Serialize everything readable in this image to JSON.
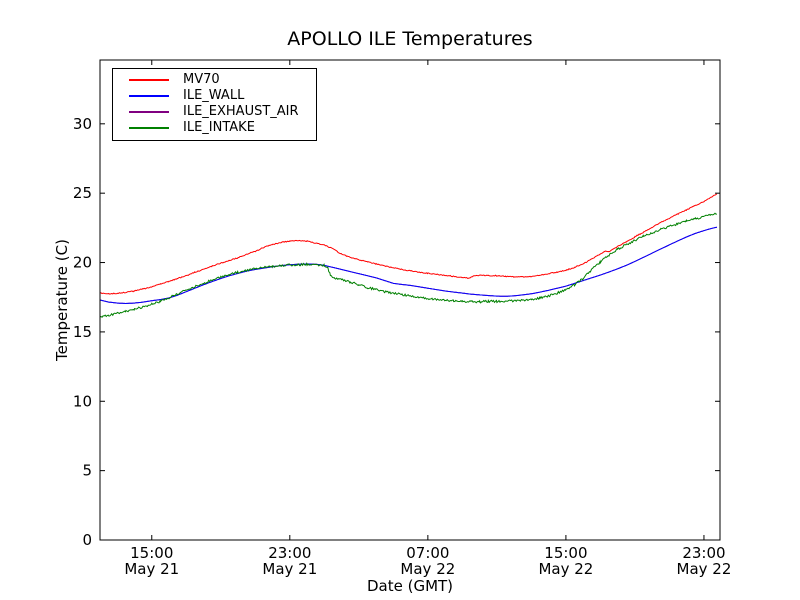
{
  "figure": {
    "background": "#ffffff",
    "axes_color": "#000000"
  },
  "chart_data": {
    "type": "line",
    "title": "APOLLO ILE Temperatures",
    "xlabel": "Date (GMT)",
    "ylabel": "Temperature (C)",
    "grid": false,
    "legend_position": "upper left",
    "x_unit": "hours since May 21 00:00 GMT",
    "xlim": [
      12,
      47.93
    ],
    "ylim": [
      0,
      34.6
    ],
    "yticks": [
      0,
      5,
      10,
      15,
      20,
      25,
      30
    ],
    "xticks": [
      {
        "hour": 15,
        "time": "15:00",
        "date": "May 21"
      },
      {
        "hour": 23,
        "time": "23:00",
        "date": "May 21"
      },
      {
        "hour": 31,
        "time": "07:00",
        "date": "May 22"
      },
      {
        "hour": 39,
        "time": "15:00",
        "date": "May 22"
      },
      {
        "hour": 47,
        "time": "23:00",
        "date": "May 22"
      }
    ],
    "z_order": [
      "MV70",
      "ILE_EXHAUST_AIR",
      "ILE_WALL",
      "ILE_INTAKE"
    ],
    "series": [
      {
        "name": "MV70",
        "color": "#ff0000",
        "noise": 0.035,
        "points": [
          [
            12,
            17.8
          ],
          [
            12.5,
            17.75
          ],
          [
            13,
            17.78
          ],
          [
            13.5,
            17.85
          ],
          [
            14,
            17.95
          ],
          [
            14.5,
            18.1
          ],
          [
            15,
            18.25
          ],
          [
            15.5,
            18.45
          ],
          [
            16,
            18.65
          ],
          [
            16.5,
            18.85
          ],
          [
            17,
            19.05
          ],
          [
            17.5,
            19.3
          ],
          [
            18,
            19.5
          ],
          [
            18.5,
            19.75
          ],
          [
            19,
            19.95
          ],
          [
            19.5,
            20.15
          ],
          [
            20,
            20.35
          ],
          [
            20.5,
            20.6
          ],
          [
            21,
            20.8
          ],
          [
            21.5,
            21.1
          ],
          [
            22,
            21.3
          ],
          [
            22.5,
            21.45
          ],
          [
            23,
            21.55
          ],
          [
            23.5,
            21.6
          ],
          [
            24,
            21.55
          ],
          [
            24.5,
            21.4
          ],
          [
            25,
            21.25
          ],
          [
            25.4,
            21.05
          ],
          [
            25.8,
            20.75
          ],
          [
            26.3,
            20.45
          ],
          [
            27,
            20.2
          ],
          [
            27.5,
            20.05
          ],
          [
            28,
            19.9
          ],
          [
            28.5,
            19.75
          ],
          [
            29,
            19.62
          ],
          [
            29.5,
            19.5
          ],
          [
            30,
            19.4
          ],
          [
            30.5,
            19.3
          ],
          [
            31,
            19.22
          ],
          [
            31.5,
            19.15
          ],
          [
            32,
            19.08
          ],
          [
            32.5,
            19.0
          ],
          [
            33,
            18.92
          ],
          [
            33.4,
            18.87
          ],
          [
            33.7,
            19.05
          ],
          [
            34,
            19.07
          ],
          [
            34.5,
            19.07
          ],
          [
            35,
            19.05
          ],
          [
            35.5,
            19.0
          ],
          [
            36,
            18.97
          ],
          [
            36.5,
            18.97
          ],
          [
            37,
            19.0
          ],
          [
            37.5,
            19.1
          ],
          [
            38,
            19.2
          ],
          [
            38.5,
            19.32
          ],
          [
            39,
            19.45
          ],
          [
            39.5,
            19.65
          ],
          [
            40,
            19.9
          ],
          [
            40.5,
            20.25
          ],
          [
            41,
            20.6
          ],
          [
            41.3,
            20.85
          ],
          [
            41.5,
            20.8
          ],
          [
            42,
            21.15
          ],
          [
            42.5,
            21.5
          ],
          [
            43,
            21.85
          ],
          [
            43.5,
            22.2
          ],
          [
            44,
            22.55
          ],
          [
            44.5,
            22.9
          ],
          [
            45,
            23.2
          ],
          [
            45.5,
            23.5
          ],
          [
            46,
            23.8
          ],
          [
            46.5,
            24.1
          ],
          [
            47,
            24.4
          ],
          [
            47.4,
            24.7
          ],
          [
            47.75,
            24.95
          ]
        ]
      },
      {
        "name": "ILE_WALL",
        "color": "#0000ff",
        "noise": 0,
        "points": [
          [
            12,
            17.3
          ],
          [
            12.5,
            17.15
          ],
          [
            13,
            17.08
          ],
          [
            13.5,
            17.05
          ],
          [
            14,
            17.08
          ],
          [
            14.5,
            17.15
          ],
          [
            15,
            17.25
          ],
          [
            15.5,
            17.33
          ],
          [
            16,
            17.45
          ],
          [
            16.5,
            17.65
          ],
          [
            17,
            17.9
          ],
          [
            17.5,
            18.15
          ],
          [
            18,
            18.4
          ],
          [
            18.5,
            18.63
          ],
          [
            19,
            18.85
          ],
          [
            19.5,
            19.05
          ],
          [
            20,
            19.22
          ],
          [
            20.5,
            19.38
          ],
          [
            21,
            19.5
          ],
          [
            21.5,
            19.6
          ],
          [
            22,
            19.7
          ],
          [
            22.5,
            19.78
          ],
          [
            23,
            19.84
          ],
          [
            23.5,
            19.88
          ],
          [
            24,
            19.9
          ],
          [
            24.5,
            19.88
          ],
          [
            25,
            19.8
          ],
          [
            25.5,
            19.65
          ],
          [
            26,
            19.5
          ],
          [
            26.5,
            19.35
          ],
          [
            27,
            19.2
          ],
          [
            27.5,
            19.05
          ],
          [
            28,
            18.9
          ],
          [
            28.5,
            18.7
          ],
          [
            29,
            18.5
          ],
          [
            29.5,
            18.42
          ],
          [
            30,
            18.35
          ],
          [
            30.5,
            18.25
          ],
          [
            31,
            18.15
          ],
          [
            31.5,
            18.05
          ],
          [
            32,
            17.95
          ],
          [
            32.5,
            17.87
          ],
          [
            33,
            17.8
          ],
          [
            33.5,
            17.72
          ],
          [
            34,
            17.67
          ],
          [
            34.5,
            17.62
          ],
          [
            35,
            17.58
          ],
          [
            35.5,
            17.57
          ],
          [
            36,
            17.6
          ],
          [
            36.5,
            17.67
          ],
          [
            37,
            17.75
          ],
          [
            37.5,
            17.87
          ],
          [
            38,
            18.0
          ],
          [
            38.5,
            18.15
          ],
          [
            39,
            18.3
          ],
          [
            39.5,
            18.5
          ],
          [
            40,
            18.7
          ],
          [
            40.5,
            18.9
          ],
          [
            41,
            19.1
          ],
          [
            41.5,
            19.32
          ],
          [
            42,
            19.55
          ],
          [
            42.5,
            19.8
          ],
          [
            43,
            20.08
          ],
          [
            43.5,
            20.38
          ],
          [
            44,
            20.68
          ],
          [
            44.5,
            20.98
          ],
          [
            45,
            21.28
          ],
          [
            45.5,
            21.57
          ],
          [
            46,
            21.85
          ],
          [
            46.5,
            22.1
          ],
          [
            47,
            22.3
          ],
          [
            47.4,
            22.45
          ],
          [
            47.75,
            22.55
          ]
        ]
      },
      {
        "name": "ILE_EXHAUST_AIR",
        "color": "#800080",
        "noise": 0,
        "points": [
          [
            12,
            17.3
          ],
          [
            12.5,
            17.15
          ],
          [
            13,
            17.08
          ],
          [
            13.5,
            17.05
          ],
          [
            14,
            17.08
          ],
          [
            14.5,
            17.15
          ],
          [
            15,
            17.25
          ],
          [
            15.5,
            17.33
          ],
          [
            16,
            17.45
          ],
          [
            16.5,
            17.65
          ],
          [
            17,
            17.9
          ],
          [
            17.5,
            18.15
          ],
          [
            18,
            18.4
          ],
          [
            18.5,
            18.63
          ],
          [
            19,
            18.85
          ],
          [
            19.5,
            19.05
          ],
          [
            20,
            19.22
          ],
          [
            20.5,
            19.38
          ],
          [
            21,
            19.5
          ],
          [
            21.5,
            19.6
          ],
          [
            22,
            19.7
          ],
          [
            22.5,
            19.78
          ],
          [
            23,
            19.84
          ],
          [
            23.5,
            19.88
          ],
          [
            24,
            19.9
          ],
          [
            24.5,
            19.88
          ],
          [
            25,
            19.8
          ],
          [
            25.5,
            19.65
          ],
          [
            26,
            19.5
          ],
          [
            26.5,
            19.35
          ],
          [
            27,
            19.2
          ],
          [
            27.5,
            19.05
          ],
          [
            28,
            18.9
          ],
          [
            28.5,
            18.7
          ],
          [
            29,
            18.5
          ],
          [
            29.5,
            18.42
          ],
          [
            30,
            18.35
          ],
          [
            30.5,
            18.25
          ],
          [
            31,
            18.15
          ],
          [
            31.5,
            18.05
          ],
          [
            32,
            17.95
          ],
          [
            32.5,
            17.87
          ],
          [
            33,
            17.8
          ],
          [
            33.5,
            17.72
          ],
          [
            34,
            17.67
          ],
          [
            34.5,
            17.62
          ],
          [
            35,
            17.58
          ],
          [
            35.5,
            17.57
          ],
          [
            36,
            17.6
          ],
          [
            36.5,
            17.67
          ],
          [
            37,
            17.75
          ],
          [
            37.5,
            17.87
          ],
          [
            38,
            18.0
          ],
          [
            38.5,
            18.15
          ],
          [
            39,
            18.3
          ],
          [
            39.5,
            18.5
          ],
          [
            40,
            18.7
          ],
          [
            40.5,
            18.9
          ],
          [
            41,
            19.1
          ],
          [
            41.5,
            19.32
          ],
          [
            42,
            19.55
          ],
          [
            42.5,
            19.8
          ],
          [
            43,
            20.08
          ],
          [
            43.5,
            20.38
          ],
          [
            44,
            20.68
          ],
          [
            44.5,
            20.98
          ],
          [
            45,
            21.28
          ],
          [
            45.5,
            21.57
          ],
          [
            46,
            21.85
          ],
          [
            46.5,
            22.1
          ],
          [
            47,
            22.3
          ],
          [
            47.4,
            22.45
          ],
          [
            47.75,
            22.55
          ]
        ]
      },
      {
        "name": "ILE_INTAKE",
        "color": "#008000",
        "noise": 0.08,
        "points": [
          [
            12,
            16.1
          ],
          [
            12.5,
            16.2
          ],
          [
            13,
            16.35
          ],
          [
            13.5,
            16.5
          ],
          [
            14,
            16.65
          ],
          [
            14.5,
            16.8
          ],
          [
            15,
            17.0
          ],
          [
            15.5,
            17.2
          ],
          [
            16,
            17.45
          ],
          [
            16.5,
            17.75
          ],
          [
            17,
            18.0
          ],
          [
            17.5,
            18.25
          ],
          [
            18,
            18.5
          ],
          [
            18.5,
            18.75
          ],
          [
            19,
            18.95
          ],
          [
            19.5,
            19.15
          ],
          [
            20,
            19.3
          ],
          [
            20.5,
            19.45
          ],
          [
            21,
            19.55
          ],
          [
            21.5,
            19.65
          ],
          [
            22,
            19.72
          ],
          [
            22.5,
            19.78
          ],
          [
            23,
            19.82
          ],
          [
            23.5,
            19.85
          ],
          [
            24,
            19.87
          ],
          [
            24.5,
            19.85
          ],
          [
            25,
            19.8
          ],
          [
            25.2,
            19.6
          ],
          [
            25.35,
            19.1
          ],
          [
            25.6,
            18.9
          ],
          [
            26,
            18.8
          ],
          [
            26.5,
            18.6
          ],
          [
            27,
            18.4
          ],
          [
            27.5,
            18.2
          ],
          [
            28,
            18.05
          ],
          [
            28.5,
            17.9
          ],
          [
            29,
            17.8
          ],
          [
            29.5,
            17.7
          ],
          [
            30,
            17.6
          ],
          [
            30.5,
            17.5
          ],
          [
            31,
            17.4
          ],
          [
            31.5,
            17.32
          ],
          [
            32,
            17.27
          ],
          [
            32.5,
            17.22
          ],
          [
            33,
            17.2
          ],
          [
            33.5,
            17.18
          ],
          [
            34,
            17.17
          ],
          [
            34.5,
            17.2
          ],
          [
            35,
            17.2
          ],
          [
            35.5,
            17.22
          ],
          [
            36,
            17.25
          ],
          [
            36.5,
            17.3
          ],
          [
            37,
            17.35
          ],
          [
            37.5,
            17.45
          ],
          [
            38,
            17.6
          ],
          [
            38.5,
            17.8
          ],
          [
            39,
            18.05
          ],
          [
            39.5,
            18.4
          ],
          [
            40,
            18.85
          ],
          [
            40.5,
            19.5
          ],
          [
            41,
            20.05
          ],
          [
            41.5,
            20.55
          ],
          [
            42,
            20.95
          ],
          [
            42.5,
            21.3
          ],
          [
            43,
            21.6
          ],
          [
            43.5,
            21.9
          ],
          [
            44,
            22.15
          ],
          [
            44.5,
            22.4
          ],
          [
            45,
            22.6
          ],
          [
            45.5,
            22.8
          ],
          [
            46,
            23.0
          ],
          [
            46.5,
            23.15
          ],
          [
            47,
            23.3
          ],
          [
            47.4,
            23.45
          ],
          [
            47.75,
            23.5
          ]
        ]
      }
    ]
  }
}
